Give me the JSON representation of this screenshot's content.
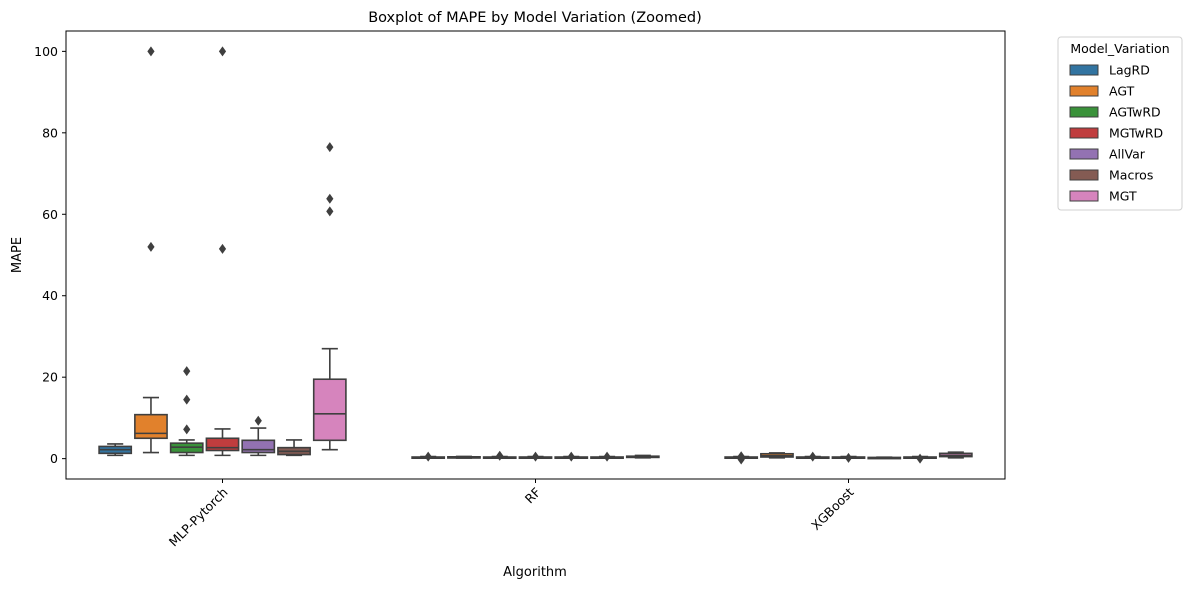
{
  "chart_data": {
    "type": "boxplot",
    "title": "Boxplot of MAPE by Model Variation (Zoomed)",
    "xlabel": "Algorithm",
    "ylabel": "MAPE",
    "ylim": [
      -5,
      105
    ],
    "yticks": [
      0,
      20,
      40,
      60,
      80,
      100
    ],
    "grid": false,
    "legend_position": "outside-top-right",
    "legend_title": "Model_Variation",
    "categories": [
      "MLP-Pytorch",
      "RF",
      "XGBoost"
    ],
    "series": [
      {
        "name": "LagRD",
        "color": "#3274a1",
        "boxes": [
          {
            "q1": 1.3,
            "median": 2.2,
            "q3": 3.0,
            "whisker_low": 0.8,
            "whisker_high": 3.6,
            "outliers": []
          },
          {
            "q1": 0.2,
            "median": 0.3,
            "q3": 0.4,
            "whisker_low": 0.1,
            "whisker_high": 0.5,
            "outliers": [
              0.5
            ]
          },
          {
            "q1": 0.2,
            "median": 0.3,
            "q3": 0.4,
            "whisker_low": 0.1,
            "whisker_high": 0.5,
            "outliers": [
              0.6,
              -0.2
            ]
          }
        ]
      },
      {
        "name": "AGT",
        "color": "#e1812c",
        "boxes": [
          {
            "q1": 5.0,
            "median": 6.2,
            "q3": 10.8,
            "whisker_low": 1.5,
            "whisker_high": 15.0,
            "outliers": [
              52,
              100
            ]
          },
          {
            "q1": 0.25,
            "median": 0.35,
            "q3": 0.45,
            "whisker_low": 0.15,
            "whisker_high": 0.55,
            "outliers": []
          },
          {
            "q1": 0.4,
            "median": 0.7,
            "q3": 1.2,
            "whisker_low": 0.2,
            "whisker_high": 1.4,
            "outliers": []
          }
        ]
      },
      {
        "name": "AGTwRD",
        "color": "#3a923a",
        "boxes": [
          {
            "q1": 1.5,
            "median": 2.8,
            "q3": 3.8,
            "whisker_low": 0.8,
            "whisker_high": 4.6,
            "outliers": [
              7.2,
              14.5,
              21.5
            ]
          },
          {
            "q1": 0.2,
            "median": 0.3,
            "q3": 0.4,
            "whisker_low": 0.1,
            "whisker_high": 0.5,
            "outliers": [
              0.7
            ]
          },
          {
            "q1": 0.2,
            "median": 0.3,
            "q3": 0.4,
            "whisker_low": 0.1,
            "whisker_high": 0.5,
            "outliers": [
              0.5
            ]
          }
        ]
      },
      {
        "name": "MGTwRD",
        "color": "#c03d3e",
        "boxes": [
          {
            "q1": 2.0,
            "median": 2.7,
            "q3": 5.0,
            "whisker_low": 0.8,
            "whisker_high": 7.3,
            "outliers": [
              51.5,
              100
            ]
          },
          {
            "q1": 0.2,
            "median": 0.3,
            "q3": 0.4,
            "whisker_low": 0.1,
            "whisker_high": 0.5,
            "outliers": [
              0.5
            ]
          },
          {
            "q1": 0.2,
            "median": 0.3,
            "q3": 0.4,
            "whisker_low": 0.1,
            "whisker_high": 0.5,
            "outliers": [
              0.2
            ]
          }
        ]
      },
      {
        "name": "AllVar",
        "color": "#9372b2",
        "boxes": [
          {
            "q1": 1.5,
            "median": 2.2,
            "q3": 4.5,
            "whisker_low": 0.8,
            "whisker_high": 7.5,
            "outliers": [
              9.3
            ]
          },
          {
            "q1": 0.2,
            "median": 0.3,
            "q3": 0.4,
            "whisker_low": 0.1,
            "whisker_high": 0.5,
            "outliers": [
              0.5
            ]
          },
          {
            "q1": 0.15,
            "median": 0.2,
            "q3": 0.3,
            "whisker_low": 0.1,
            "whisker_high": 0.35,
            "outliers": []
          }
        ]
      },
      {
        "name": "Macros",
        "color": "#845b53",
        "boxes": [
          {
            "q1": 1.0,
            "median": 1.8,
            "q3": 2.7,
            "whisker_low": 0.8,
            "whisker_high": 4.6,
            "outliers": []
          },
          {
            "q1": 0.2,
            "median": 0.3,
            "q3": 0.4,
            "whisker_low": 0.1,
            "whisker_high": 0.5,
            "outliers": [
              0.5
            ]
          },
          {
            "q1": 0.2,
            "median": 0.3,
            "q3": 0.4,
            "whisker_low": 0.1,
            "whisker_high": 0.5,
            "outliers": [
              0.0
            ]
          }
        ]
      },
      {
        "name": "MGT",
        "color": "#d684bd",
        "boxes": [
          {
            "q1": 4.5,
            "median": 11.0,
            "q3": 19.5,
            "whisker_low": 2.2,
            "whisker_high": 27.0,
            "outliers": [
              60.7,
              63.8,
              76.5
            ]
          },
          {
            "q1": 0.3,
            "median": 0.4,
            "q3": 0.6,
            "whisker_low": 0.2,
            "whisker_high": 0.8,
            "outliers": []
          },
          {
            "q1": 0.5,
            "median": 0.8,
            "q3": 1.3,
            "whisker_low": 0.2,
            "whisker_high": 1.6,
            "outliers": []
          }
        ]
      }
    ]
  }
}
